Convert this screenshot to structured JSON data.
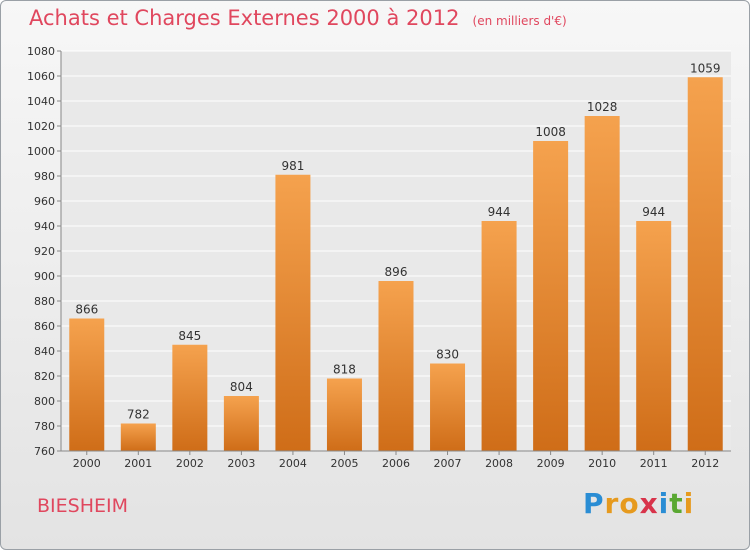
{
  "chart_data": {
    "type": "bar",
    "title": "Achats et Charges Externes 2000 à 2012",
    "subtitle": "(en milliers d'€)",
    "categories": [
      "2000",
      "2001",
      "2002",
      "2003",
      "2004",
      "2005",
      "2006",
      "2007",
      "2008",
      "2009",
      "2010",
      "2011",
      "2012"
    ],
    "values": [
      866,
      782,
      845,
      804,
      981,
      818,
      896,
      830,
      944,
      1008,
      1028,
      944,
      1059
    ],
    "ylim": [
      760,
      1080
    ],
    "yticks": [
      760,
      780,
      800,
      820,
      840,
      860,
      880,
      900,
      920,
      940,
      960,
      980,
      1000,
      1020,
      1040,
      1060,
      1080
    ],
    "grid": true,
    "bar_color_light": "#f5a24e",
    "bar_color_dark": "#cf6d18"
  },
  "footer": {
    "commune": "BIESHEIM",
    "brand_letters": [
      {
        "char": "P",
        "color": "#2a8dd4"
      },
      {
        "char": "r",
        "color": "#e69a1e"
      },
      {
        "char": "o",
        "color": "#e69a1e"
      },
      {
        "char": "x",
        "color": "#d8334a"
      },
      {
        "char": "i",
        "color": "#2a8dd4"
      },
      {
        "char": "t",
        "color": "#5aa832"
      },
      {
        "char": "i",
        "color": "#e69a1e"
      }
    ]
  }
}
